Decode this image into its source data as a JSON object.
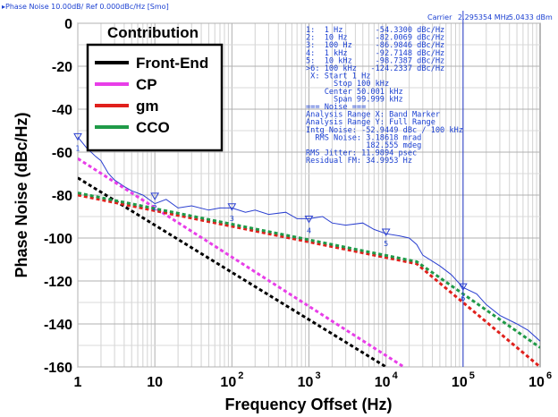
{
  "header": {
    "left": "▸Phase Noise 10.00dB/ Ref 0.000dBc/Hz [Smo]",
    "carrier_label": "Carrier",
    "carrier_freq": "2.295354 MHz",
    "carrier_power": "-5.0433 dBm"
  },
  "markers_panel": {
    "lines": [
      "1:  1 Hz       -54.3300 dBc/Hz",
      "2:  10 Hz      -82.0069 dBc/Hz",
      "3:  100 Hz     -86.9846 dBc/Hz",
      "4:  1 kHz      -92.7148 dBc/Hz",
      "5:  10 kHz     -98.7387 dBc/Hz",
      ">6: 100 kHz   -124.2337 dBc/Hz",
      " X: Start 1 Hz",
      "      Stop 100 kHz",
      "    Center 50.001 kHz",
      "      Span 99.999 kHz",
      "=== Noise ===",
      "Analysis Range X: Band Marker",
      "Analysis Range Y: Full Range",
      "Intg Noise: -52.9449 dBc / 100 kHz",
      "  RMS Noise: 3.18618 mrad",
      "             182.555 mdeg",
      "RMS Jitter: 11.9894 psec",
      "Residual FM: 34.9953 Hz"
    ]
  },
  "chart_data": {
    "type": "line",
    "xlabel": "Frequency Offset (Hz)",
    "ylabel": "Phase Noise (dBc/Hz)",
    "x_scale": "log",
    "xlim": [
      1,
      1000000
    ],
    "ylim": [
      -160,
      0
    ],
    "x_ticks": [
      {
        "value": 1,
        "base": "1",
        "exp": ""
      },
      {
        "value": 10,
        "base": "10",
        "exp": ""
      },
      {
        "value": 100,
        "base": "10",
        "exp": "2"
      },
      {
        "value": 1000,
        "base": "10",
        "exp": "3"
      },
      {
        "value": 10000,
        "base": "10",
        "exp": "4"
      },
      {
        "value": 100000,
        "base": "10",
        "exp": "5"
      },
      {
        "value": 1000000,
        "base": "10",
        "exp": "6"
      }
    ],
    "y_ticks": [
      0,
      -20,
      -40,
      -60,
      -80,
      -100,
      -120,
      -140,
      -160
    ],
    "grid": true,
    "legend": {
      "title": "Contribution",
      "placement": "top-left",
      "entries": [
        {
          "name": "Front-End",
          "color": "#000000"
        },
        {
          "name": "CP",
          "color": "#e83ee8"
        },
        {
          "name": "gm",
          "color": "#e0201c"
        },
        {
          "name": "CCO",
          "color": "#1f9a48"
        }
      ]
    },
    "series": [
      {
        "name": "Front-End",
        "color": "#000000",
        "style": "dashed",
        "x": [
          1,
          10000
        ],
        "y": [
          -72,
          -160
        ]
      },
      {
        "name": "CP",
        "color": "#e83ee8",
        "style": "dashed",
        "x": [
          1,
          17000
        ],
        "y": [
          -63,
          -160
        ]
      },
      {
        "name": "gm",
        "color": "#e0201c",
        "style": "dashed",
        "x": [
          1,
          25000,
          1000000
        ],
        "y": [
          -80,
          -112,
          -160
        ]
      },
      {
        "name": "CCO",
        "color": "#1f9a48",
        "style": "dashed",
        "x": [
          1,
          25000,
          1000000
        ],
        "y": [
          -79,
          -111,
          -151
        ]
      },
      {
        "name": "Measured",
        "color": "#2a3fd0",
        "style": "solid",
        "x": [
          1,
          1.3,
          1.7,
          2,
          2.5,
          3,
          4,
          5,
          7,
          10,
          14,
          20,
          30,
          50,
          70,
          100,
          150,
          200,
          300,
          500,
          700,
          1000,
          1500,
          2000,
          3000,
          5000,
          7000,
          10000,
          15000,
          20000,
          25000,
          30000,
          50000,
          70000,
          100000,
          150000,
          200000,
          300000,
          500000,
          700000,
          1000000
        ],
        "y": [
          -53,
          -58,
          -62,
          -64,
          -70,
          -73,
          -76,
          -78,
          -80,
          -84,
          -82,
          -86,
          -85,
          -87,
          -86,
          -86,
          -88,
          -87,
          -89,
          -88,
          -91,
          -91,
          -90,
          -93,
          -94,
          -93,
          -96,
          -98,
          -99,
          -100,
          -103,
          -108,
          -113,
          -117,
          -123,
          -126,
          -131,
          -136,
          -140,
          -143,
          -148
        ]
      }
    ],
    "markers": [
      {
        "label": "1",
        "x": 1,
        "y": -54.33
      },
      {
        "label": "2",
        "x": 10,
        "y": -82.0069
      },
      {
        "label": "3",
        "x": 100,
        "y": -86.9846
      },
      {
        "label": "4",
        "x": 1000,
        "y": -92.7148
      },
      {
        "label": "5",
        "x": 10000,
        "y": -98.7387
      },
      {
        "label": "6",
        "x": 100000,
        "y": -124.2337
      }
    ],
    "cursor_x": 100000
  }
}
